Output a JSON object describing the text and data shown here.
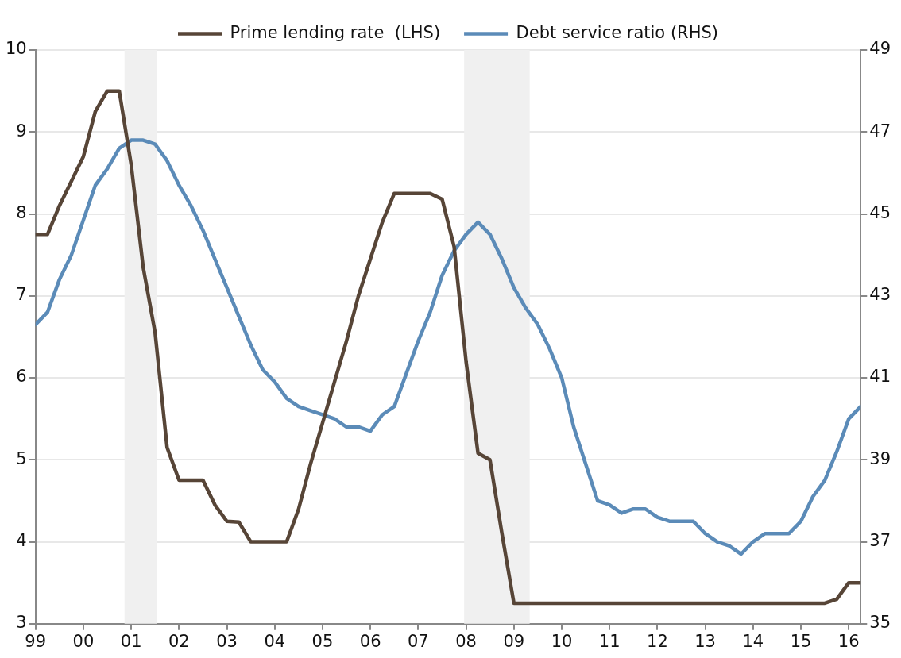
{
  "chart_data": {
    "type": "line",
    "x": [
      1999,
      1999.25,
      1999.5,
      1999.75,
      2000,
      2000.25,
      2000.5,
      2000.75,
      2001,
      2001.25,
      2001.5,
      2001.75,
      2002,
      2002.25,
      2002.5,
      2002.75,
      2003,
      2003.25,
      2003.5,
      2003.75,
      2004,
      2004.25,
      2004.5,
      2004.75,
      2005,
      2005.25,
      2005.5,
      2005.75,
      2006,
      2006.25,
      2006.5,
      2006.75,
      2007,
      2007.25,
      2007.5,
      2007.75,
      2008,
      2008.25,
      2008.5,
      2008.75,
      2009,
      2009.25,
      2009.5,
      2009.75,
      2010,
      2010.25,
      2010.5,
      2010.75,
      2011,
      2011.25,
      2011.5,
      2011.75,
      2012,
      2012.25,
      2012.5,
      2012.75,
      2013,
      2013.25,
      2013.5,
      2013.75,
      2014,
      2014.25,
      2014.5,
      2014.75,
      2015,
      2015.25,
      2015.5,
      2015.75,
      2016,
      2016.25
    ],
    "series": [
      {
        "name": "Prime lending rate  (LHS)",
        "color": "#574537",
        "values": [
          7.75,
          7.75,
          8.1,
          8.4,
          8.7,
          9.25,
          9.5,
          9.5,
          8.6,
          7.35,
          6.55,
          5.15,
          4.75,
          4.75,
          4.75,
          4.45,
          4.25,
          4.24,
          4.0,
          4.0,
          4.0,
          4.0,
          4.4,
          4.95,
          5.45,
          5.95,
          6.45,
          7.0,
          7.45,
          7.9,
          8.25,
          8.25,
          8.25,
          8.25,
          8.18,
          7.6,
          6.2,
          5.08,
          5.0,
          4.1,
          3.25,
          3.25,
          3.25,
          3.25,
          3.25,
          3.25,
          3.25,
          3.25,
          3.25,
          3.25,
          3.25,
          3.25,
          3.25,
          3.25,
          3.25,
          3.25,
          3.25,
          3.25,
          3.25,
          3.25,
          3.25,
          3.25,
          3.25,
          3.25,
          3.25,
          3.25,
          3.25,
          3.3,
          3.5,
          3.5
        ]
      },
      {
        "name": "Debt service ratio (RHS)",
        "color": "#5b8bb8",
        "axis": "y2",
        "values": [
          42.3,
          42.6,
          43.4,
          44.0,
          44.85,
          45.7,
          46.1,
          46.6,
          46.8,
          46.8,
          46.7,
          46.3,
          45.7,
          45.2,
          44.6,
          43.9,
          43.2,
          42.5,
          41.8,
          41.2,
          40.9,
          40.5,
          40.3,
          40.2,
          40.1,
          40.0,
          39.8,
          39.8,
          39.7,
          40.1,
          40.3,
          41.1,
          41.9,
          42.6,
          43.5,
          44.1,
          44.5,
          44.8,
          44.5,
          43.9,
          43.2,
          42.7,
          42.3,
          41.7,
          41.0,
          39.8,
          38.9,
          38.0,
          37.9,
          37.7,
          37.8,
          37.8,
          37.6,
          37.5,
          37.5,
          37.5,
          37.2,
          37.0,
          36.9,
          36.7,
          37.0,
          37.2,
          37.2,
          37.2,
          37.5,
          38.1,
          38.5,
          39.2,
          40.0,
          40.3
        ]
      }
    ],
    "xlim": [
      1999,
      2016.25
    ],
    "xticks": [
      {
        "value": 1999,
        "label": "99"
      },
      {
        "value": 2000,
        "label": "00"
      },
      {
        "value": 2001,
        "label": "01"
      },
      {
        "value": 2002,
        "label": "02"
      },
      {
        "value": 2003,
        "label": "03"
      },
      {
        "value": 2004,
        "label": "04"
      },
      {
        "value": 2005,
        "label": "05"
      },
      {
        "value": 2006,
        "label": "06"
      },
      {
        "value": 2007,
        "label": "07"
      },
      {
        "value": 2008,
        "label": "08"
      },
      {
        "value": 2009,
        "label": "09"
      },
      {
        "value": 2010,
        "label": "10"
      },
      {
        "value": 2011,
        "label": "11"
      },
      {
        "value": 2012,
        "label": "12"
      },
      {
        "value": 2013,
        "label": "13"
      },
      {
        "value": 2014,
        "label": "14"
      },
      {
        "value": 2015,
        "label": "15"
      },
      {
        "value": 2016,
        "label": "16"
      }
    ],
    "ylim": [
      3,
      10
    ],
    "yticks": [
      3,
      4,
      5,
      6,
      7,
      8,
      9,
      10
    ],
    "y2lim": [
      35,
      49
    ],
    "y2ticks": [
      35,
      37,
      39,
      41,
      43,
      45,
      47,
      49
    ],
    "bands": [
      {
        "axis": "x",
        "from": 2000.86,
        "to": 2001.54,
        "color": "#f0f0f0"
      },
      {
        "axis": "x",
        "from": 2007.96,
        "to": 2009.33,
        "color": "#f0f0f0"
      }
    ],
    "grid": "y",
    "legend": "top",
    "marker": "none",
    "line_style": "solid"
  }
}
